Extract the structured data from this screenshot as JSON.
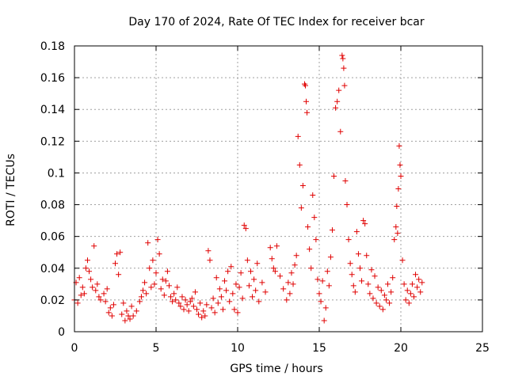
{
  "chart_data": {
    "type": "scatter",
    "title": "Day 170 of 2024, Rate Of TEC Index for receiver bcar",
    "xlabel": "GPS time / hours",
    "ylabel": "ROTI / TECUs",
    "xlim": [
      0,
      25
    ],
    "ylim": [
      0,
      0.18
    ],
    "x_ticks": [
      0,
      5,
      10,
      15,
      20,
      25
    ],
    "y_ticks": [
      0,
      0.02,
      0.04,
      0.06,
      0.08,
      0.1,
      0.12,
      0.14,
      0.16,
      0.18
    ],
    "x_tick_labels": [
      "0",
      "5",
      "10",
      "15",
      "20",
      "25"
    ],
    "y_tick_labels": [
      "0",
      "0.02",
      "0.04",
      "0.06",
      "0.08",
      "0.1",
      "0.12",
      "0.14",
      "0.16",
      "0.18"
    ],
    "grid": true,
    "marker": "+",
    "color": "#e00000",
    "series": [
      {
        "points": [
          [
            0.0,
            0.02
          ],
          [
            0.1,
            0.031
          ],
          [
            0.2,
            0.018
          ],
          [
            0.3,
            0.034
          ],
          [
            0.4,
            0.023
          ],
          [
            0.5,
            0.028
          ],
          [
            0.6,
            0.024
          ],
          [
            0.7,
            0.04
          ],
          [
            0.8,
            0.045
          ],
          [
            0.9,
            0.038
          ],
          [
            1.0,
            0.033
          ],
          [
            1.1,
            0.028
          ],
          [
            1.2,
            0.054
          ],
          [
            1.3,
            0.026
          ],
          [
            1.4,
            0.03
          ],
          [
            1.5,
            0.022
          ],
          [
            1.6,
            0.02
          ],
          [
            1.8,
            0.024
          ],
          [
            1.9,
            0.019
          ],
          [
            2.0,
            0.027
          ],
          [
            2.1,
            0.012
          ],
          [
            2.2,
            0.015
          ],
          [
            2.3,
            0.01
          ],
          [
            2.4,
            0.017
          ],
          [
            2.5,
            0.043
          ],
          [
            2.6,
            0.049
          ],
          [
            2.7,
            0.036
          ],
          [
            2.8,
            0.05
          ],
          [
            2.9,
            0.011
          ],
          [
            3.0,
            0.018
          ],
          [
            3.1,
            0.007
          ],
          [
            3.2,
            0.013
          ],
          [
            3.3,
            0.01
          ],
          [
            3.4,
            0.008
          ],
          [
            3.5,
            0.016
          ],
          [
            3.6,
            0.01
          ],
          [
            3.8,
            0.013
          ],
          [
            4.0,
            0.019
          ],
          [
            4.1,
            0.022
          ],
          [
            4.2,
            0.026
          ],
          [
            4.3,
            0.031
          ],
          [
            4.4,
            0.024
          ],
          [
            4.5,
            0.056
          ],
          [
            4.6,
            0.04
          ],
          [
            4.7,
            0.028
          ],
          [
            4.8,
            0.045
          ],
          [
            4.9,
            0.03
          ],
          [
            5.0,
            0.037
          ],
          [
            5.1,
            0.058
          ],
          [
            5.2,
            0.049
          ],
          [
            5.3,
            0.027
          ],
          [
            5.4,
            0.033
          ],
          [
            5.5,
            0.023
          ],
          [
            5.6,
            0.032
          ],
          [
            5.7,
            0.038
          ],
          [
            5.8,
            0.029
          ],
          [
            5.9,
            0.022
          ],
          [
            6.0,
            0.019
          ],
          [
            6.1,
            0.024
          ],
          [
            6.2,
            0.02
          ],
          [
            6.3,
            0.028
          ],
          [
            6.4,
            0.018
          ],
          [
            6.5,
            0.016
          ],
          [
            6.6,
            0.022
          ],
          [
            6.7,
            0.014
          ],
          [
            6.8,
            0.02
          ],
          [
            6.9,
            0.017
          ],
          [
            7.0,
            0.013
          ],
          [
            7.1,
            0.019
          ],
          [
            7.2,
            0.021
          ],
          [
            7.3,
            0.016
          ],
          [
            7.4,
            0.025
          ],
          [
            7.5,
            0.014
          ],
          [
            7.6,
            0.011
          ],
          [
            7.7,
            0.018
          ],
          [
            7.8,
            0.009
          ],
          [
            7.9,
            0.013
          ],
          [
            8.0,
            0.01
          ],
          [
            8.1,
            0.017
          ],
          [
            8.2,
            0.051
          ],
          [
            8.3,
            0.045
          ],
          [
            8.4,
            0.015
          ],
          [
            8.5,
            0.021
          ],
          [
            8.6,
            0.012
          ],
          [
            8.7,
            0.034
          ],
          [
            8.8,
            0.018
          ],
          [
            8.9,
            0.027
          ],
          [
            9.0,
            0.022
          ],
          [
            9.1,
            0.014
          ],
          [
            9.2,
            0.032
          ],
          [
            9.3,
            0.026
          ],
          [
            9.4,
            0.038
          ],
          [
            9.5,
            0.019
          ],
          [
            9.6,
            0.041
          ],
          [
            9.7,
            0.024
          ],
          [
            9.8,
            0.014
          ],
          [
            9.9,
            0.03
          ],
          [
            10.0,
            0.012
          ],
          [
            10.1,
            0.028
          ],
          [
            10.2,
            0.037
          ],
          [
            10.3,
            0.021
          ],
          [
            10.4,
            0.067
          ],
          [
            10.5,
            0.065
          ],
          [
            10.6,
            0.045
          ],
          [
            10.7,
            0.029
          ],
          [
            10.8,
            0.038
          ],
          [
            10.9,
            0.022
          ],
          [
            11.0,
            0.033
          ],
          [
            11.1,
            0.026
          ],
          [
            11.2,
            0.043
          ],
          [
            11.3,
            0.019
          ],
          [
            11.5,
            0.031
          ],
          [
            11.7,
            0.025
          ],
          [
            12.0,
            0.053
          ],
          [
            12.1,
            0.046
          ],
          [
            12.2,
            0.04
          ],
          [
            12.3,
            0.038
          ],
          [
            12.4,
            0.054
          ],
          [
            12.6,
            0.035
          ],
          [
            12.8,
            0.027
          ],
          [
            13.0,
            0.02
          ],
          [
            13.1,
            0.031
          ],
          [
            13.2,
            0.024
          ],
          [
            13.3,
            0.037
          ],
          [
            13.4,
            0.03
          ],
          [
            13.5,
            0.042
          ],
          [
            13.6,
            0.048
          ],
          [
            13.7,
            0.123
          ],
          [
            13.8,
            0.105
          ],
          [
            13.9,
            0.078
          ],
          [
            14.0,
            0.092
          ],
          [
            14.1,
            0.156
          ],
          [
            14.15,
            0.155
          ],
          [
            14.2,
            0.145
          ],
          [
            14.25,
            0.138
          ],
          [
            14.3,
            0.066
          ],
          [
            14.4,
            0.052
          ],
          [
            14.5,
            0.04
          ],
          [
            14.6,
            0.086
          ],
          [
            14.7,
            0.072
          ],
          [
            14.8,
            0.058
          ],
          [
            14.9,
            0.033
          ],
          [
            15.0,
            0.024
          ],
          [
            15.1,
            0.019
          ],
          [
            15.2,
            0.032
          ],
          [
            15.3,
            0.007
          ],
          [
            15.4,
            0.015
          ],
          [
            15.5,
            0.038
          ],
          [
            15.6,
            0.029
          ],
          [
            15.7,
            0.047
          ],
          [
            15.8,
            0.064
          ],
          [
            15.9,
            0.098
          ],
          [
            16.0,
            0.141
          ],
          [
            16.1,
            0.145
          ],
          [
            16.2,
            0.152
          ],
          [
            16.3,
            0.126
          ],
          [
            16.4,
            0.174
          ],
          [
            16.45,
            0.172
          ],
          [
            16.5,
            0.166
          ],
          [
            16.55,
            0.155
          ],
          [
            16.6,
            0.095
          ],
          [
            16.7,
            0.08
          ],
          [
            16.8,
            0.058
          ],
          [
            16.9,
            0.043
          ],
          [
            17.0,
            0.036
          ],
          [
            17.1,
            0.029
          ],
          [
            17.2,
            0.025
          ],
          [
            17.3,
            0.063
          ],
          [
            17.4,
            0.049
          ],
          [
            17.5,
            0.04
          ],
          [
            17.6,
            0.032
          ],
          [
            17.7,
            0.07
          ],
          [
            17.8,
            0.068
          ],
          [
            17.9,
            0.048
          ],
          [
            18.0,
            0.03
          ],
          [
            18.1,
            0.024
          ],
          [
            18.2,
            0.039
          ],
          [
            18.3,
            0.021
          ],
          [
            18.4,
            0.035
          ],
          [
            18.5,
            0.018
          ],
          [
            18.6,
            0.028
          ],
          [
            18.7,
            0.016
          ],
          [
            18.8,
            0.026
          ],
          [
            18.9,
            0.014
          ],
          [
            19.0,
            0.023
          ],
          [
            19.1,
            0.02
          ],
          [
            19.2,
            0.03
          ],
          [
            19.3,
            0.018
          ],
          [
            19.4,
            0.025
          ],
          [
            19.5,
            0.034
          ],
          [
            19.6,
            0.058
          ],
          [
            19.7,
            0.066
          ],
          [
            19.75,
            0.079
          ],
          [
            19.8,
            0.062
          ],
          [
            19.85,
            0.09
          ],
          [
            19.9,
            0.117
          ],
          [
            19.95,
            0.105
          ],
          [
            20.0,
            0.098
          ],
          [
            20.1,
            0.045
          ],
          [
            20.2,
            0.03
          ],
          [
            20.3,
            0.02
          ],
          [
            20.4,
            0.026
          ],
          [
            20.5,
            0.018
          ],
          [
            20.6,
            0.024
          ],
          [
            20.7,
            0.03
          ],
          [
            20.8,
            0.022
          ],
          [
            20.9,
            0.036
          ],
          [
            21.0,
            0.028
          ],
          [
            21.1,
            0.033
          ],
          [
            21.2,
            0.025
          ],
          [
            21.3,
            0.031
          ]
        ]
      }
    ]
  }
}
